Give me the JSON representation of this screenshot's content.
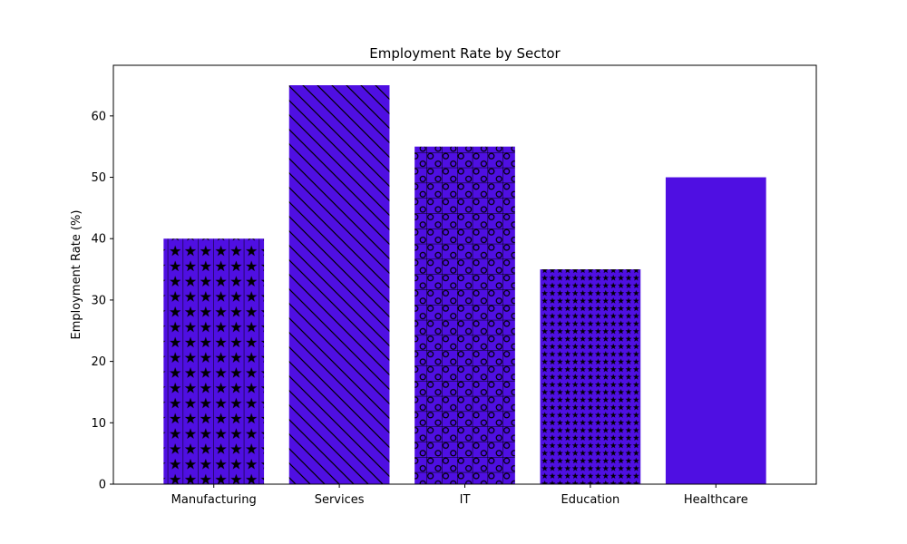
{
  "chart_data": {
    "type": "bar",
    "title": "Employment Rate by Sector",
    "xlabel": "",
    "ylabel": "Employment Rate (%)",
    "categories": [
      "Manufacturing",
      "Services",
      "IT",
      "Education",
      "Healthcare"
    ],
    "values": [
      40,
      65,
      55,
      35,
      50
    ],
    "hatches": [
      "large-stars",
      "diagonal-lines",
      "grid-circles",
      "small-stars",
      "none"
    ],
    "ylim": [
      0,
      68.25
    ],
    "yticks": [
      0,
      10,
      20,
      30,
      40,
      50,
      60
    ],
    "bar_color": "#4f0fe2",
    "hatch_color": "#000000",
    "grid": false,
    "legend": "none"
  }
}
